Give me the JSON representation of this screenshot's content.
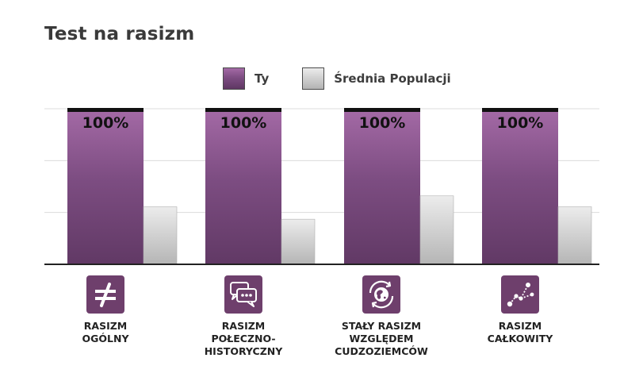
{
  "chart_data": {
    "type": "bar",
    "title": "Test na rasizm",
    "categories": [
      "RASIZM\nOGÓLNY",
      "RASIZM\nPOŁECZNO-\nHISTORYCZNY",
      "STAŁY RASIZM\nWZGLĘDEM\nCUDZOZIEMCÓW",
      "RASIZM\nCAŁKOWITY"
    ],
    "series": [
      {
        "name": "Ty",
        "values": [
          100,
          100,
          100,
          100
        ],
        "data_labels": [
          "100%",
          "100%",
          "100%",
          "100%"
        ],
        "color": "#7d4d82"
      },
      {
        "name": "Średnia Populacji",
        "values": [
          37,
          29,
          44,
          37
        ],
        "color": "#c9c9c9"
      }
    ],
    "ylim": [
      0,
      100
    ],
    "xlabel": "",
    "ylabel": "",
    "grid": true,
    "legend_position": "top"
  },
  "icons": [
    "not-equal-icon",
    "speech-bubbles-icon",
    "globe-arrows-icon",
    "scatter-points-icon"
  ],
  "colors": {
    "purple": "#7d4d82",
    "purple_light": "#a46aa6",
    "purple_dark": "#5f3763",
    "grey": "#c9c9c9",
    "icon_bg": "#6e3f6c",
    "gridline": "#dcdcdc",
    "axis": "#222222"
  }
}
